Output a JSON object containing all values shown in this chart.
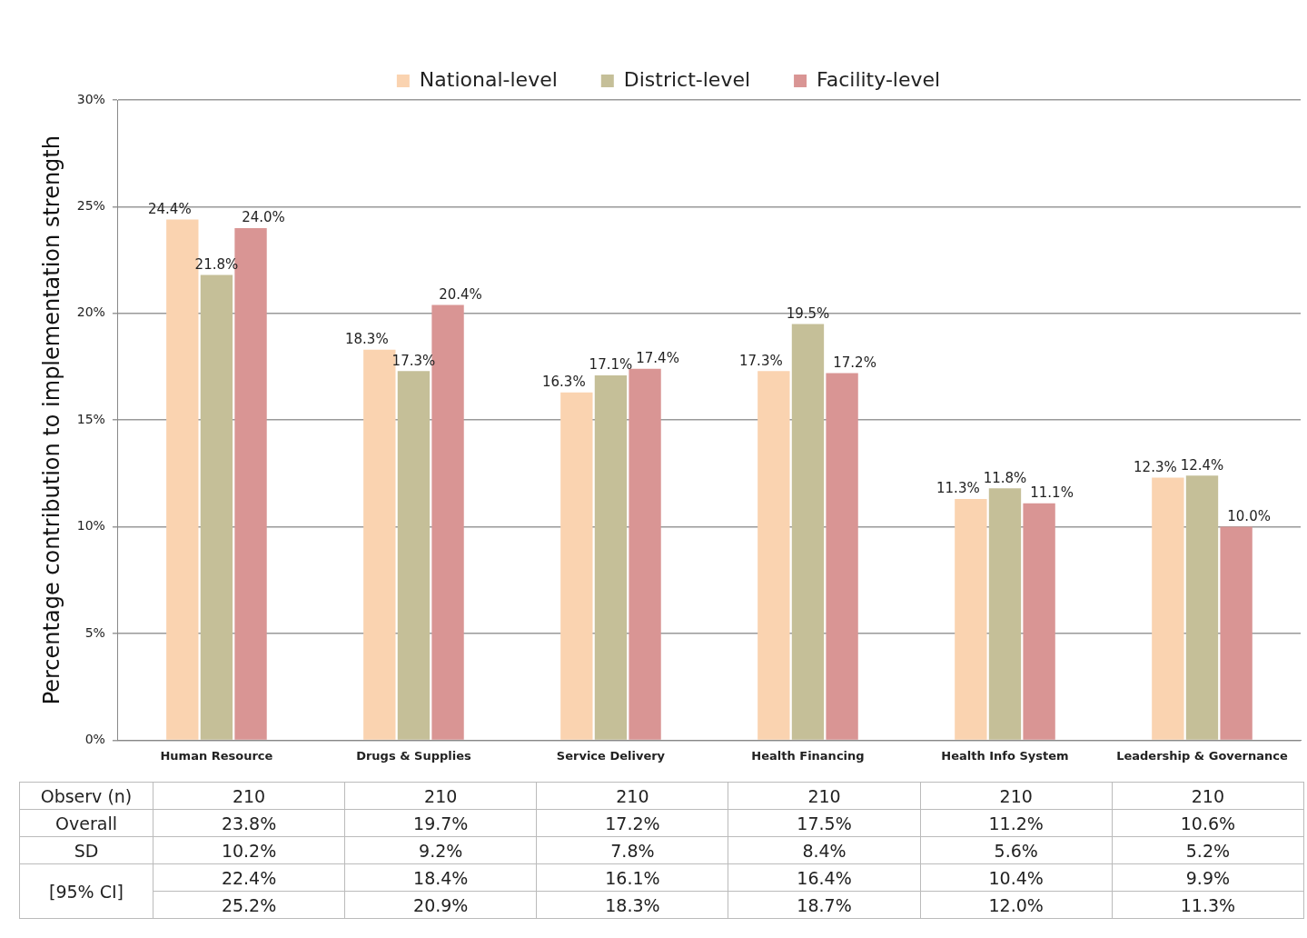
{
  "chart_data": {
    "type": "bar",
    "ylabel": "Percentage contribution to implementation strength",
    "categories": [
      "Human Resource",
      "Drugs & Supplies",
      "Service Delivery",
      "Health Financing",
      "Health Info System",
      "Leadership & Governance"
    ],
    "series": [
      {
        "name": "National-level",
        "color": "#fad3b0",
        "values": [
          24.4,
          18.3,
          16.3,
          17.3,
          11.3,
          12.3
        ],
        "value_labels": [
          "24.4%",
          "18.3%",
          "16.3%",
          "17.3%",
          "11.3%",
          "12.3%"
        ]
      },
      {
        "name": "District-level",
        "color": "#c5bf98",
        "values": [
          21.8,
          17.3,
          17.1,
          19.5,
          11.8,
          12.4
        ],
        "value_labels": [
          "21.8%",
          "17.3%",
          "17.1%",
          "19.5%",
          "11.8%",
          "12.4%"
        ]
      },
      {
        "name": "Facility-level",
        "color": "#d99594",
        "values": [
          24.0,
          20.4,
          17.4,
          17.2,
          11.1,
          10.0
        ],
        "value_labels": [
          "24.0%",
          "20.4%",
          "17.4%",
          "17.2%",
          "11.1%",
          "10.0%"
        ]
      }
    ],
    "ylim": [
      0,
      30
    ],
    "yticks": [
      {
        "value": 0,
        "label": "0%"
      },
      {
        "value": 5,
        "label": "5%"
      },
      {
        "value": 10,
        "label": "10%"
      },
      {
        "value": 15,
        "label": "15%"
      },
      {
        "value": 20,
        "label": "20%"
      },
      {
        "value": 25,
        "label": "25%"
      },
      {
        "value": 30,
        "label": "30%"
      }
    ],
    "grid": "y",
    "legend": "top",
    "annotations": [
      "Observ (n)",
      "210",
      "210",
      "210",
      "210",
      "210",
      "210",
      "Overall",
      "23.8%",
      "19.7%",
      "17.2%",
      "17.5%",
      "11.2%",
      "10.6%",
      "SD",
      "10.2%",
      "9.2%",
      "7.8%",
      "8.4%",
      "5.6%",
      "5.2%",
      "[95% CI]",
      "22.4%",
      "18.4%",
      "16.1%",
      "16.4%",
      "10.4%",
      "9.9%",
      "25.2%",
      "20.9%",
      "18.3%",
      "18.7%",
      "12.0%",
      "11.3%"
    ]
  }
}
